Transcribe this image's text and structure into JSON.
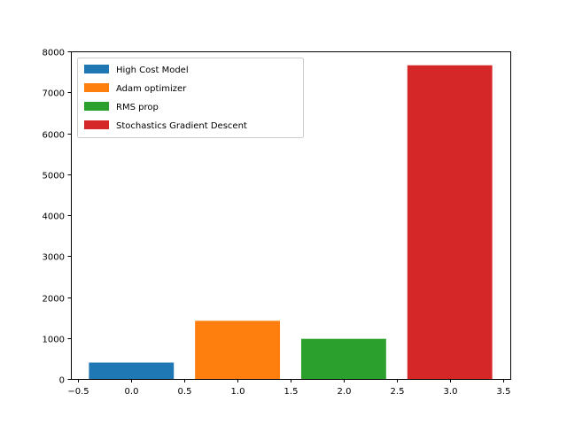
{
  "chart_data": {
    "type": "bar",
    "series": [
      {
        "name": "High Cost Model",
        "x": 0,
        "value": 400,
        "color": "#1f77b4"
      },
      {
        "name": "Adam optimizer",
        "x": 1,
        "value": 1420,
        "color": "#ff7f0e"
      },
      {
        "name": "RMS prop",
        "x": 2,
        "value": 980,
        "color": "#2ca02c"
      },
      {
        "name": "Stochastics Gradient Descent",
        "x": 3,
        "value": 7660,
        "color": "#d62728"
      }
    ],
    "bar_width": 0.8,
    "xlim": [
      -0.57,
      3.57
    ],
    "ylim": [
      0,
      8000
    ],
    "x_ticks": [
      -0.5,
      0.0,
      0.5,
      1.0,
      1.5,
      2.0,
      2.5,
      3.0,
      3.5
    ],
    "x_tick_labels": [
      "−0.5",
      "0.0",
      "0.5",
      "1.0",
      "1.5",
      "2.0",
      "2.5",
      "3.0",
      "3.5"
    ],
    "y_ticks": [
      0,
      1000,
      2000,
      3000,
      4000,
      5000,
      6000,
      7000,
      8000
    ],
    "y_tick_labels": [
      "0",
      "1000",
      "2000",
      "3000",
      "4000",
      "5000",
      "6000",
      "7000",
      "8000"
    ],
    "legend_position": "top-left",
    "grid": false
  }
}
